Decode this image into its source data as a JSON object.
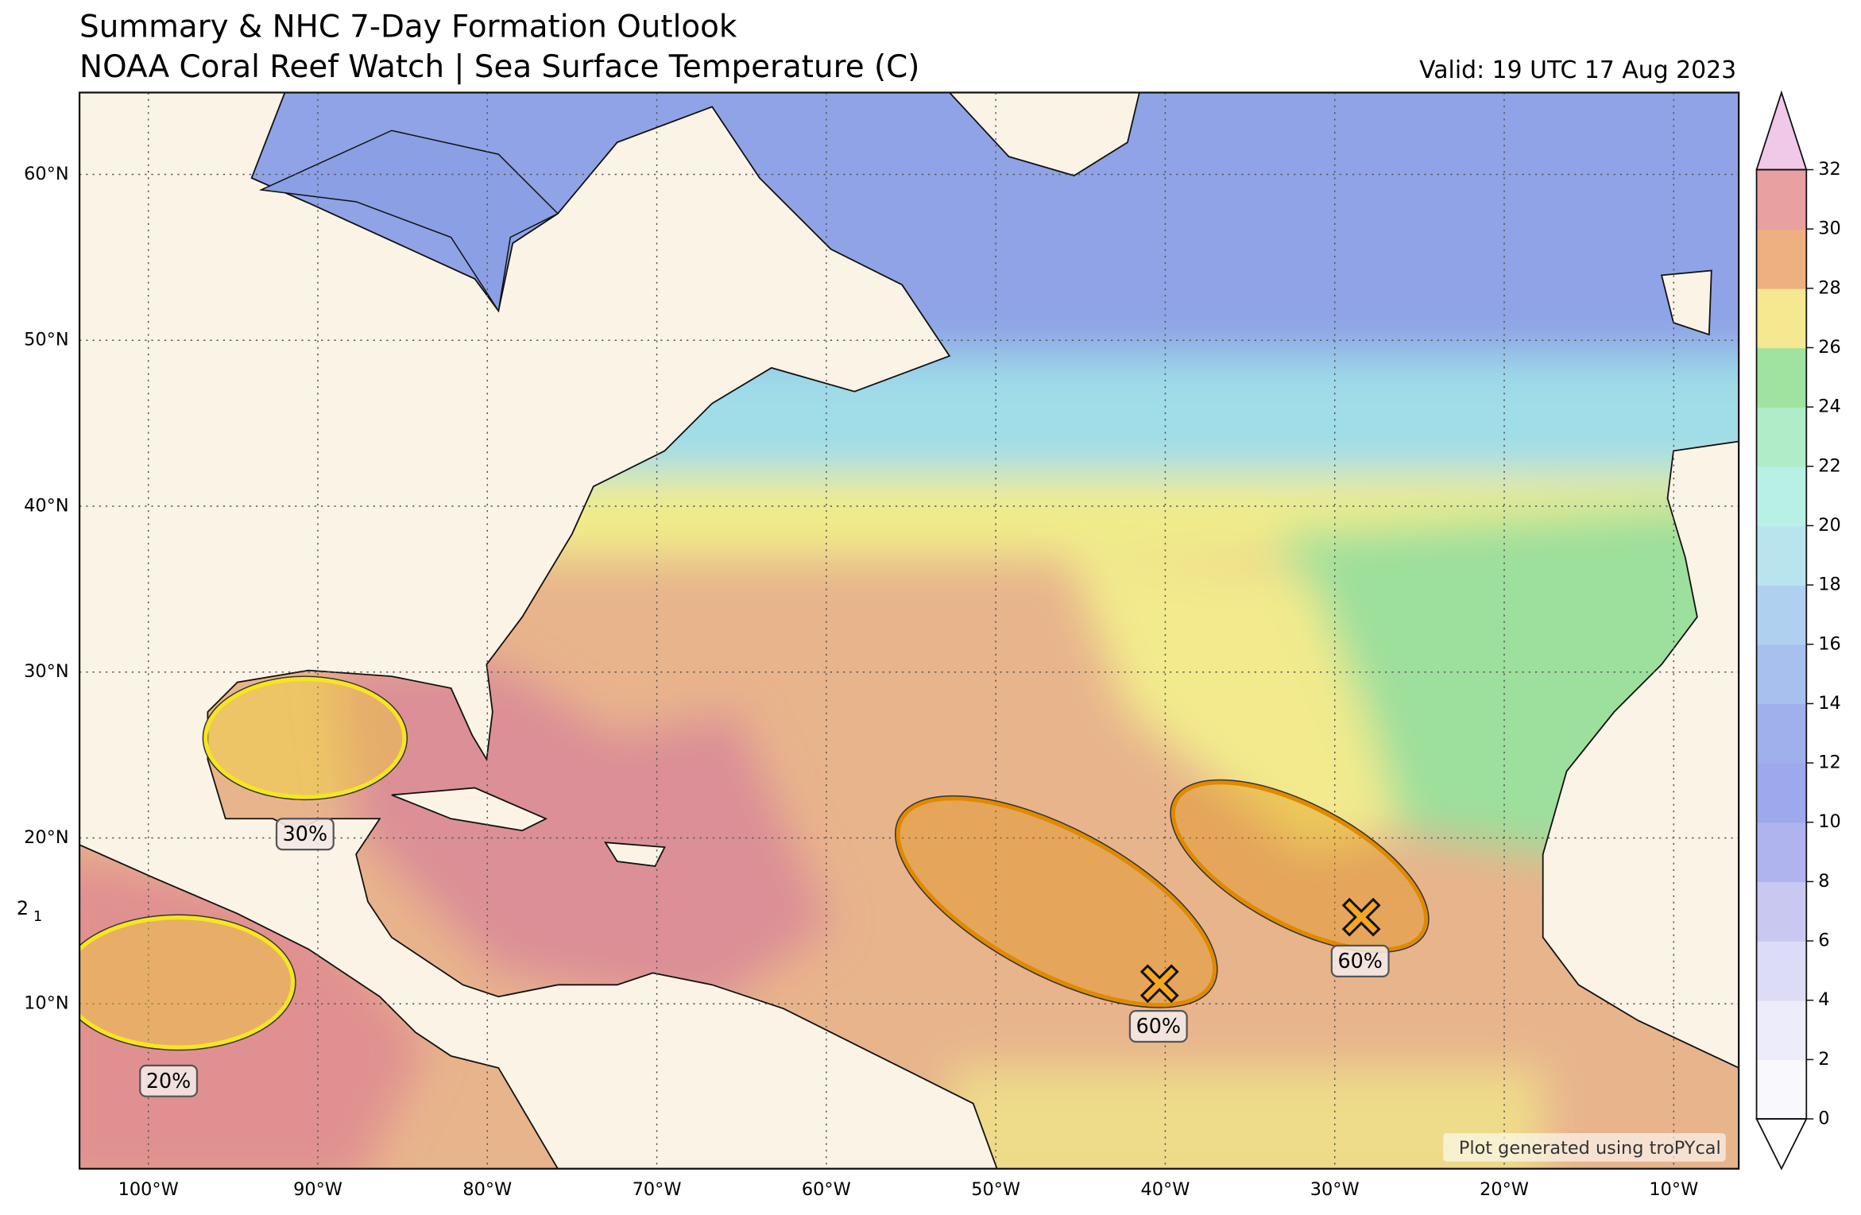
{
  "header": {
    "title": "Summary & NHC 7-Day Formation Outlook",
    "subtitle": "NOAA Coral Reef Watch | Sea Surface Temperature (C)",
    "valid": "Valid: 19 UTC 17 Aug 2023"
  },
  "map": {
    "lat_labels": [
      "60°N",
      "50°N",
      "40°N",
      "30°N",
      "20°N",
      "10°N"
    ],
    "lon_labels": [
      "100°W",
      "90°W",
      "80°W",
      "70°W",
      "60°W",
      "50°W",
      "40°W",
      "30°W",
      "20°W",
      "10°W"
    ]
  },
  "colorbar": {
    "ticks": [
      0,
      2,
      4,
      6,
      8,
      10,
      12,
      14,
      16,
      18,
      20,
      22,
      24,
      26,
      28,
      30,
      32
    ],
    "colors": [
      "#f8f8fd",
      "#ececfa",
      "#dcdcf6",
      "#c8c8f0",
      "#b0b4ee",
      "#9ea8ec",
      "#a0b0ec",
      "#a8c0ee",
      "#b0d0f0",
      "#b8e4ee",
      "#b8f0e6",
      "#b0ecc8",
      "#a0e2a0",
      "#f4e890",
      "#eeb080",
      "#e8a0a0"
    ],
    "over_color": "#f0c8e8"
  },
  "outlooks": [
    {
      "label": "30%",
      "color": "#f5e620"
    },
    {
      "label": "60%",
      "color": "#e08a00"
    },
    {
      "label": "60%",
      "color": "#e08a00"
    },
    {
      "label": "20%",
      "color": "#f5e620"
    }
  ],
  "edge_labels": [
    "2",
    "1"
  ],
  "credit": "Plot generated using troPYcal"
}
